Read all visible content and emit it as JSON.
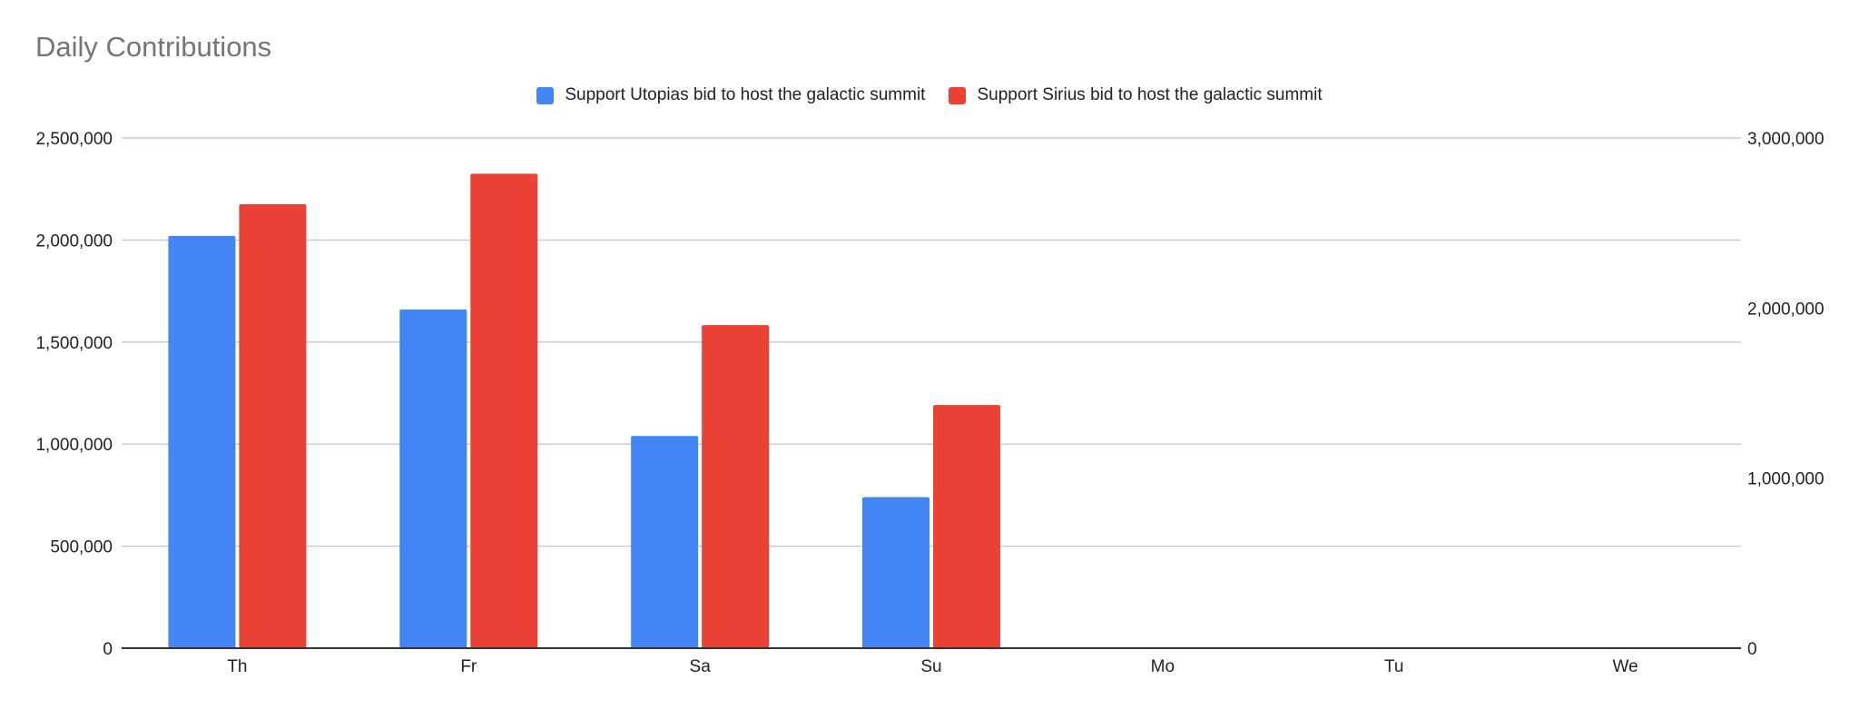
{
  "chart_data": {
    "type": "bar",
    "title": "Daily Contributions",
    "categories": [
      "Th",
      "Fr",
      "Sa",
      "Su",
      "Mo",
      "Tu",
      "We"
    ],
    "series": [
      {
        "name": "Support Utopias bid to host the galactic summit",
        "color": "#4285f4",
        "axis": "left",
        "values": [
          2020000,
          1660000,
          1040000,
          740000,
          0,
          0,
          0
        ]
      },
      {
        "name": "Support Sirius bid to host the galactic summit",
        "color": "#ea4335",
        "axis": "right",
        "values": [
          2610000,
          2790000,
          1900000,
          1430000,
          0,
          0,
          0
        ]
      }
    ],
    "y_left": {
      "ylim": [
        0,
        2500000
      ],
      "ticks": [
        0,
        500000,
        1000000,
        1500000,
        2000000,
        2500000
      ],
      "tick_labels": [
        "0",
        "500,000",
        "1,000,000",
        "1,500,000",
        "2,000,000",
        "2,500,000"
      ]
    },
    "y_right": {
      "ylim": [
        0,
        3000000
      ],
      "ticks": [
        0,
        1000000,
        2000000,
        3000000
      ],
      "tick_labels": [
        "0",
        "1,000,000",
        "2,000,000",
        "3,000,000"
      ]
    },
    "grid": true,
    "legend_position": "top"
  }
}
